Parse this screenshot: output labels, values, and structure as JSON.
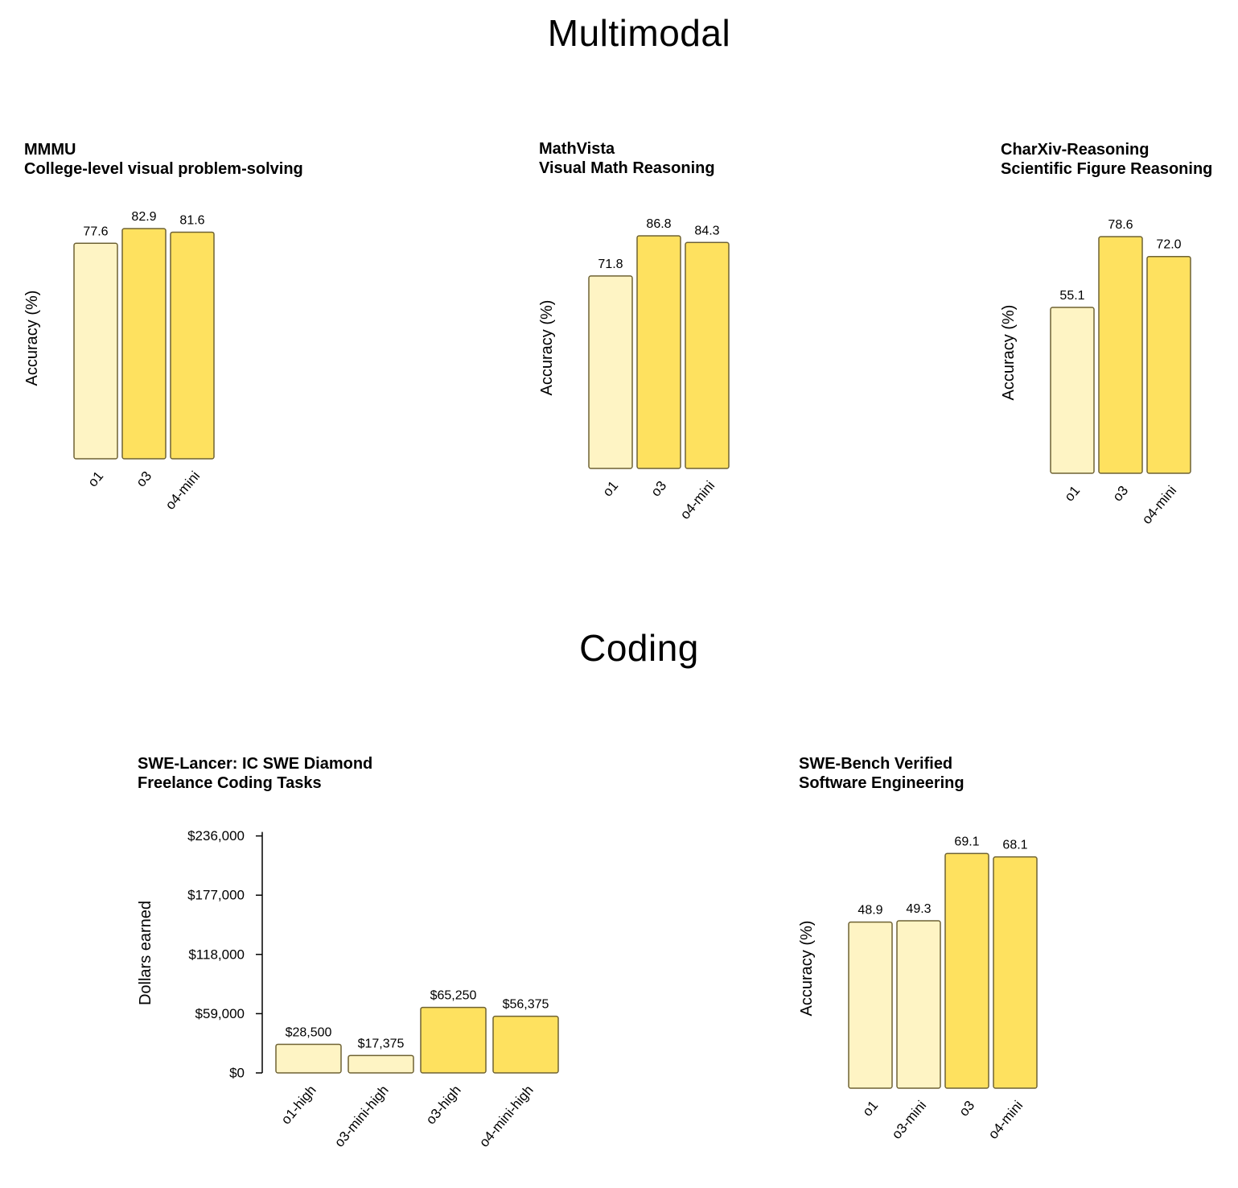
{
  "sections": {
    "multimodal": "Multimodal",
    "coding": "Coding"
  },
  "colors": {
    "light_bar": "#fef4c4",
    "bright_bar": "#fee15f",
    "bar_stroke": "#6e6233"
  },
  "chart_data": [
    {
      "id": "mmmu",
      "type": "bar",
      "title": "MMMU",
      "subtitle": "College-level visual problem-solving",
      "ylabel": "Accuracy (%)",
      "categories": [
        "o1",
        "o3",
        "o4-mini"
      ],
      "values": [
        77.6,
        82.9,
        81.6
      ],
      "labels": [
        "77.6",
        "82.9",
        "81.6"
      ],
      "shades": [
        "light",
        "bright",
        "bright"
      ],
      "ylim": [
        0,
        100
      ]
    },
    {
      "id": "mathvista",
      "type": "bar",
      "title": "MathVista",
      "subtitle": "Visual Math Reasoning",
      "ylabel": "Accuracy (%)",
      "categories": [
        "o1",
        "o3",
        "o4-mini"
      ],
      "values": [
        71.8,
        86.8,
        84.3
      ],
      "labels": [
        "71.8",
        "86.8",
        "84.3"
      ],
      "shades": [
        "light",
        "bright",
        "bright"
      ],
      "ylim": [
        0,
        100
      ]
    },
    {
      "id": "charxiv",
      "type": "bar",
      "title": "CharXiv-Reasoning",
      "subtitle": "Scientific Figure Reasoning",
      "ylabel": "Accuracy (%)",
      "categories": [
        "o1",
        "o3",
        "o4-mini"
      ],
      "values": [
        55.1,
        78.6,
        72.0
      ],
      "labels": [
        "55.1",
        "78.6",
        "72.0"
      ],
      "shades": [
        "light",
        "bright",
        "bright"
      ],
      "ylim": [
        0,
        100
      ]
    },
    {
      "id": "swelancer",
      "type": "bar",
      "title": "SWE-Lancer: IC SWE Diamond",
      "subtitle": "Freelance Coding Tasks",
      "ylabel": "Dollars earned",
      "categories": [
        "o1-high",
        "o3-mini-high",
        "o3-high",
        "o4-mini-high"
      ],
      "values": [
        28500,
        17375,
        65250,
        56375
      ],
      "labels": [
        "$28,500",
        "$17,375",
        "$65,250",
        "$56,375"
      ],
      "shades": [
        "light",
        "light",
        "bright",
        "bright"
      ],
      "ylim": [
        0,
        236000
      ],
      "yticks": [
        0,
        59000,
        118000,
        177000,
        236000
      ],
      "ytick_labels": [
        "$0",
        "$59,000",
        "$118,000",
        "$177,000",
        "$236,000"
      ]
    },
    {
      "id": "swebench",
      "type": "bar",
      "title": "SWE-Bench Verified",
      "subtitle": "Software Engineering",
      "ylabel": "Accuracy (%)",
      "categories": [
        "o1",
        "o3-mini",
        "o3",
        "o4-mini"
      ],
      "values": [
        48.9,
        49.3,
        69.1,
        68.1
      ],
      "labels": [
        "48.9",
        "49.3",
        "69.1",
        "68.1"
      ],
      "shades": [
        "light",
        "light",
        "bright",
        "bright"
      ],
      "ylim": [
        0,
        100
      ]
    }
  ]
}
